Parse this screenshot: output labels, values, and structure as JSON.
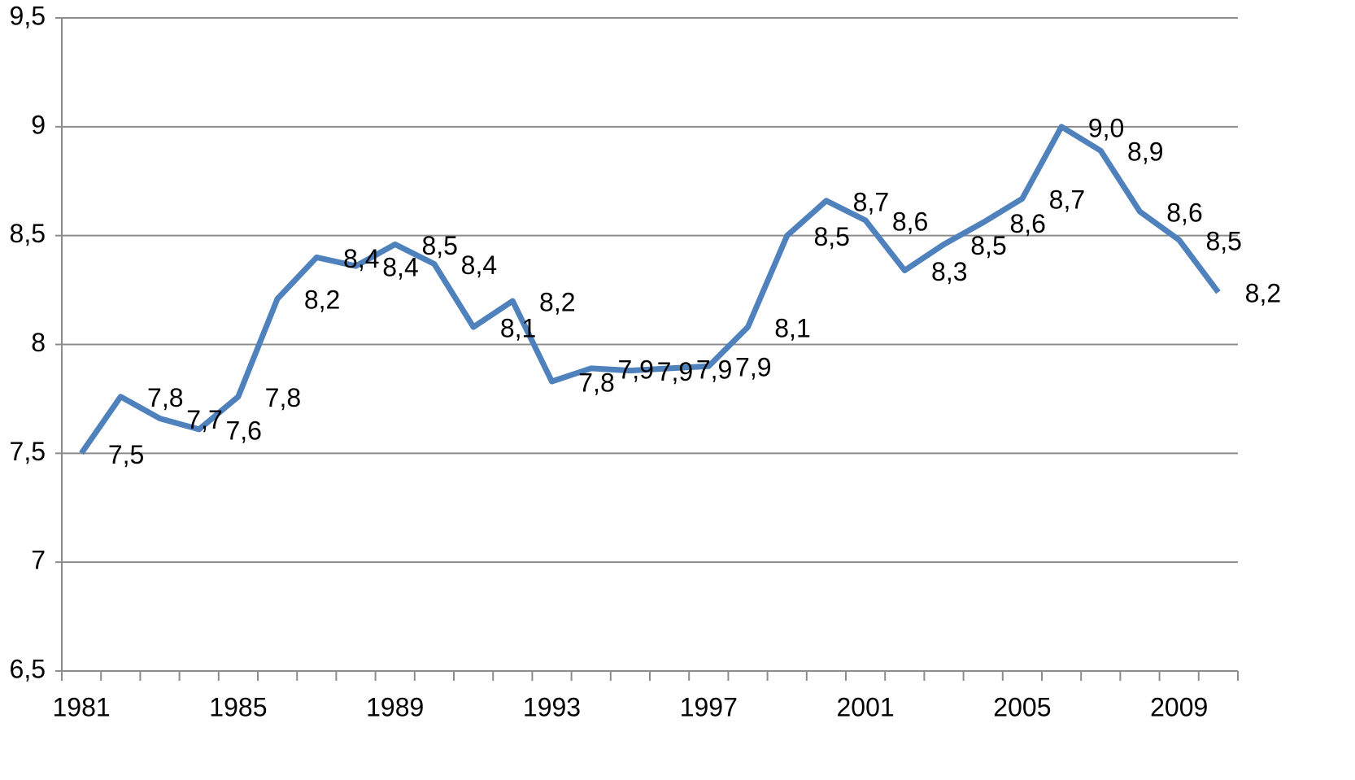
{
  "chart_data": {
    "type": "line",
    "categories": [
      "1981",
      null,
      null,
      null,
      "1985",
      null,
      null,
      null,
      "1989",
      null,
      null,
      null,
      "1993",
      null,
      null,
      null,
      "1997",
      null,
      null,
      null,
      "2001",
      null,
      null,
      null,
      "2005",
      null,
      null,
      null,
      "2009",
      null
    ],
    "values": [
      7.5,
      7.76,
      7.66,
      7.61,
      7.76,
      8.21,
      8.4,
      8.36,
      8.46,
      8.37,
      8.08,
      8.2,
      7.83,
      7.89,
      7.88,
      7.89,
      7.9,
      8.08,
      8.5,
      8.66,
      8.57,
      8.34,
      8.46,
      8.56,
      8.67,
      9.0,
      8.89,
      8.61,
      8.48,
      8.24
    ],
    "value_labels": [
      "7,5",
      "7,8",
      "7,7",
      "7,6",
      "7,8",
      "8,2",
      "8,4",
      "8,4",
      "8,5",
      "8,4",
      "8,1",
      "8,2",
      "7,8",
      "7,9",
      "7,9",
      "7,9",
      "7,9",
      "8,1",
      "8,5",
      "8,7",
      "8,6",
      "8,3",
      "8,5",
      "8,6",
      "8,7",
      "9,0",
      "8,9",
      "8,6",
      "8,5",
      "8,2"
    ],
    "color": "#4f81bd",
    "ylim": [
      6.5,
      9.5
    ],
    "yticks": [
      {
        "value": 6.5,
        "label": "6,5"
      },
      7,
      {
        "value": 7.5,
        "label": "7,5"
      },
      8,
      {
        "value": 8.5,
        "label": "8,5"
      },
      9,
      {
        "value": 9.5,
        "label": "9,5"
      }
    ],
    "grid": true
  }
}
